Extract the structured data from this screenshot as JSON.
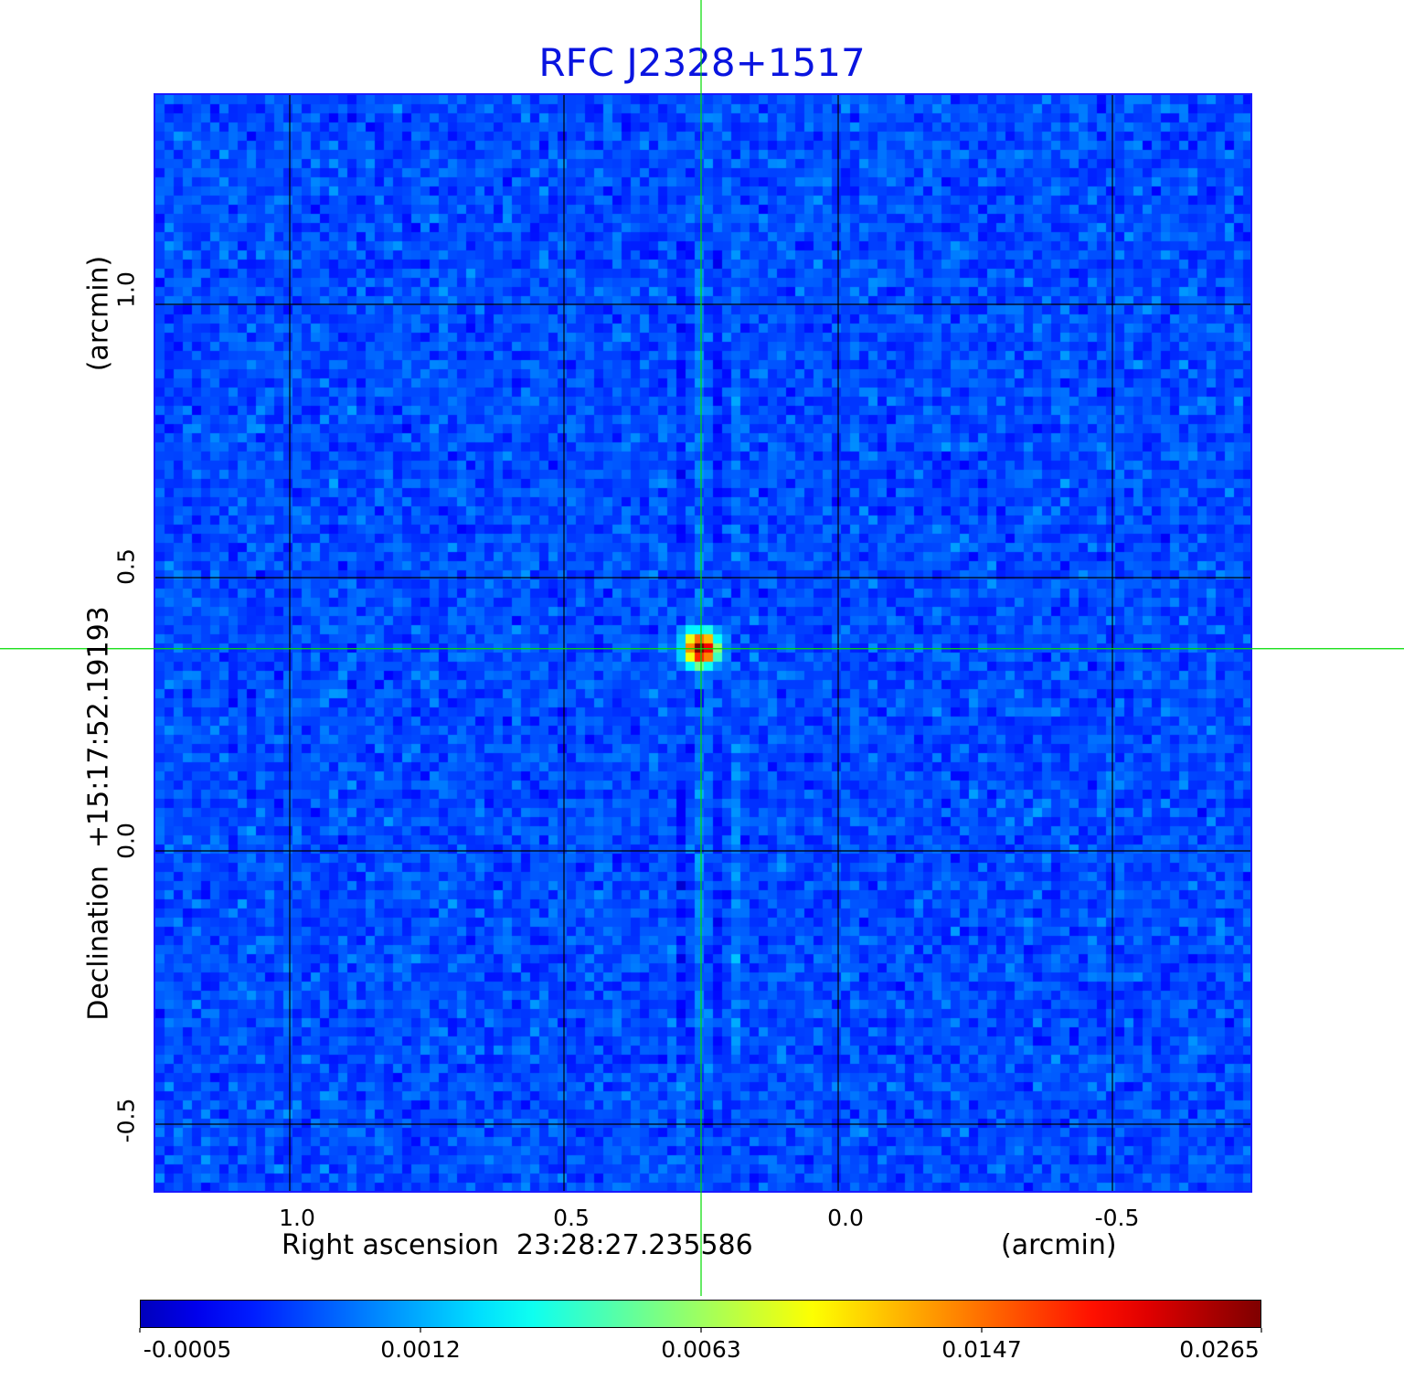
{
  "chart_data": {
    "type": "heatmap",
    "title": "RFC J2328+1517",
    "xlabel": "Right ascension  23:28:27.235586",
    "xunit": "(arcmin)",
    "ylabel": "Declination  +15:17:52.19193",
    "yunit": "(arcmin)",
    "xlim": [
      1.25,
      -0.75
    ],
    "ylim": [
      -0.62,
      1.38
    ],
    "x_ticks": [
      "1.0",
      "0.5",
      "0.0",
      "-0.5"
    ],
    "x_tick_values": [
      1.0,
      0.5,
      0.0,
      -0.5
    ],
    "y_ticks": [
      "1.0",
      "0.5",
      "0.0",
      "-0.5"
    ],
    "y_tick_values": [
      1.0,
      0.5,
      0.0,
      -0.5
    ],
    "grid": true,
    "colormap": "jet",
    "colorbar_ticks": [
      "-0.0005",
      "0.0012",
      "0.0063",
      "0.0147",
      "0.0265"
    ],
    "colorbar_range": [
      -0.0005,
      0.0265
    ],
    "peak": {
      "x": 0.25,
      "y": 0.37,
      "value": 0.0265
    },
    "crosshair": {
      "x": 0.25,
      "y": 0.37
    },
    "colors": {
      "title": "#0a14e0",
      "grid": "#000000",
      "crosshair": "#00dd00",
      "frame": "#1a1aff"
    }
  }
}
